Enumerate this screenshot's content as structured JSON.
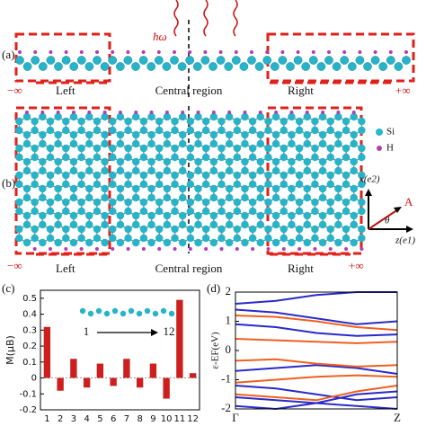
{
  "diagram": {
    "panel_a": "(a)",
    "panel_b": "(b)",
    "photon": "ħω",
    "row_a": {
      "minus_inf": "−∞",
      "left": "Left",
      "central": "Central region",
      "right": "Right",
      "plus_inf": "+∞"
    },
    "row_b": {
      "minus_inf": "−∞",
      "left": "Left",
      "central": "Central region",
      "right": "Right",
      "plus_inf": "+∞"
    },
    "legend": [
      "Si",
      "H"
    ],
    "axis_x": "x(e2)",
    "axis_z": "z(e1)",
    "vector": "A",
    "angle": "θ"
  },
  "chart_data": [
    {
      "type": "bar",
      "panel": "(c)",
      "ylabel": "M(μB)",
      "color": "#cc1f1f",
      "categories": [
        "1",
        "2",
        "3",
        "4",
        "5",
        "6",
        "7",
        "8",
        "9",
        "10",
        "11",
        "12"
      ],
      "values": [
        0.32,
        -0.08,
        0.12,
        -0.06,
        0.09,
        -0.05,
        0.12,
        -0.06,
        0.09,
        -0.13,
        0.49,
        0.03
      ],
      "ylim": [
        -0.2,
        0.55
      ],
      "yticks": [
        -0.2,
        -0.1,
        0,
        0.1,
        0.2,
        0.3,
        0.4,
        0.5
      ],
      "annotations": [
        "1",
        "12"
      ]
    },
    {
      "type": "line",
      "panel": "(d)",
      "ylabel": "ε-EF(eV)",
      "x": [
        0,
        0.25,
        0.5,
        0.75,
        1
      ],
      "xlim": [
        0,
        1
      ],
      "xticks": [
        {
          "value": 0,
          "label": "Γ"
        },
        {
          "value": 1,
          "label": "Z"
        }
      ],
      "ylim": [
        -2,
        2
      ],
      "yticks": [
        -2,
        -1,
        0,
        1,
        2
      ],
      "series": [
        {
          "color": "#2a2ac8",
          "values": [
            1.6,
            1.7,
            1.9,
            2,
            2
          ]
        },
        {
          "color": "#2a2ac8",
          "values": [
            1.4,
            1.3,
            1.1,
            0.9,
            1.0
          ]
        },
        {
          "color": "#2a2ac8",
          "values": [
            0.9,
            0.8,
            0.6,
            0.5,
            0.55
          ]
        },
        {
          "color": "#2a2ac8",
          "values": [
            -0.7,
            -0.6,
            -0.5,
            -0.6,
            -0.8
          ]
        },
        {
          "color": "#2a2ac8",
          "values": [
            -1.2,
            -1.3,
            -1.5,
            -1.7,
            -1.6
          ]
        },
        {
          "color": "#2a2ac8",
          "values": [
            -1.6,
            -1.7,
            -1.8,
            -1.9,
            -2
          ]
        },
        {
          "color": "#2a2ac8",
          "values": [
            -1.9,
            -2,
            -1.8,
            -1.5,
            -1.4
          ]
        },
        {
          "color": "#f06020",
          "values": [
            1.2,
            1.15,
            1.0,
            0.8,
            0.7
          ]
        },
        {
          "color": "#f06020",
          "values": [
            0.4,
            0.35,
            0.3,
            0.25,
            0.3
          ]
        },
        {
          "color": "#f06020",
          "values": [
            -0.35,
            -0.3,
            -0.45,
            -0.55,
            -0.5
          ]
        },
        {
          "color": "#f06020",
          "values": [
            -1.1,
            -1.0,
            -0.9,
            -0.85,
            -0.9
          ]
        },
        {
          "color": "#f06020",
          "values": [
            -1.5,
            -1.6,
            -1.7,
            -1.4,
            -1.2
          ]
        }
      ]
    }
  ]
}
